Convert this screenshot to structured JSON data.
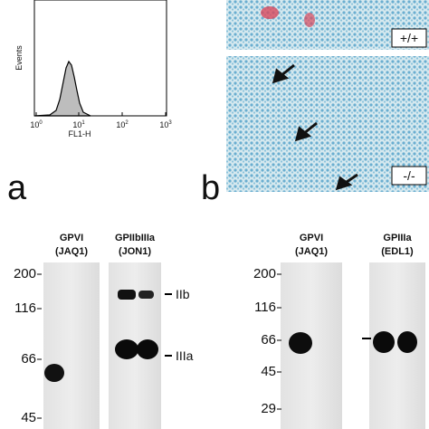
{
  "panel_a": {
    "letter": "a",
    "y_label": "Events",
    "x_label": "FL1-H",
    "x_ticks": [
      {
        "base": "10",
        "exp": "0"
      },
      {
        "base": "10",
        "exp": "1"
      },
      {
        "base": "10",
        "exp": "2"
      },
      {
        "base": "10",
        "exp": "3"
      }
    ]
  },
  "panel_b": {
    "letter": "b",
    "top_label": "+/+",
    "bottom_label": "-/-"
  },
  "blots_left": {
    "markers": [
      "200",
      "116",
      "66",
      "45"
    ],
    "lanes": [
      {
        "name": "GPVI",
        "antibody": "(JAQ1)"
      },
      {
        "name": "GPIIbIIIa",
        "antibody": "(JON1)"
      }
    ],
    "band_labels": [
      "IIb",
      "IIIa"
    ]
  },
  "blots_right": {
    "markers": [
      "200",
      "116",
      "66",
      "45",
      "29"
    ],
    "lanes": [
      {
        "name": "GPVI",
        "antibody": "(JAQ1)"
      },
      {
        "name": "GPIIIa",
        "antibody": "(EDL1)"
      }
    ]
  }
}
